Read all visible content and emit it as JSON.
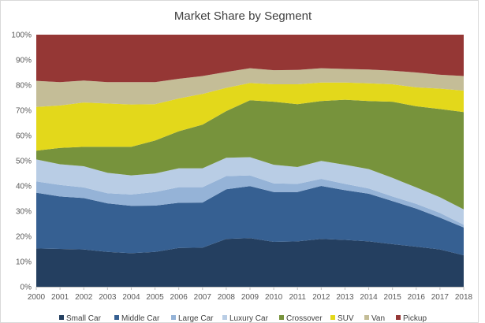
{
  "chart_data": {
    "type": "area",
    "stacked": "percent",
    "title": "Market Share by Segment",
    "xlabel": "",
    "ylabel": "",
    "ylim": [
      0,
      100
    ],
    "y_ticks": [
      "0%",
      "10%",
      "20%",
      "30%",
      "40%",
      "50%",
      "60%",
      "70%",
      "80%",
      "90%",
      "100%"
    ],
    "grid": false,
    "legend": "bottom",
    "categories": [
      "2000",
      "2001",
      "2002",
      "2003",
      "2004",
      "2005",
      "2006",
      "2007",
      "2008",
      "2009",
      "2010",
      "2011",
      "2012",
      "2013",
      "2014",
      "2015",
      "2016",
      "2017",
      "2018"
    ],
    "series": [
      {
        "name": "Small Car",
        "color": "#243F60",
        "values": [
          15.2,
          15.0,
          14.8,
          13.8,
          13.3,
          13.8,
          15.4,
          15.5,
          19.0,
          19.3,
          17.8,
          18.0,
          19.0,
          18.6,
          18.0,
          16.9,
          15.9,
          14.8,
          12.5
        ]
      },
      {
        "name": "Middle Car",
        "color": "#366092",
        "values": [
          22.1,
          20.8,
          20.4,
          19.3,
          18.8,
          18.4,
          17.9,
          17.9,
          19.7,
          20.6,
          19.8,
          19.6,
          21.0,
          19.7,
          18.9,
          17.1,
          15.1,
          12.6,
          11.0
        ]
      },
      {
        "name": "Large Car",
        "color": "#95B3D7",
        "values": [
          4.5,
          4.6,
          4.2,
          4.0,
          4.5,
          5.4,
          6.2,
          6.1,
          5.2,
          4.3,
          3.4,
          3.2,
          2.8,
          2.5,
          2.1,
          1.8,
          1.9,
          1.9,
          1.1
        ]
      },
      {
        "name": "Luxury Car",
        "color": "#B9CDE5",
        "values": [
          8.7,
          8.2,
          8.4,
          8.1,
          7.6,
          7.3,
          7.5,
          7.5,
          7.3,
          7.2,
          7.4,
          6.7,
          7.1,
          7.6,
          7.7,
          7.4,
          6.5,
          6.2,
          6.1
        ]
      },
      {
        "name": "Crossover",
        "color": "#77933C",
        "values": [
          3.5,
          6.5,
          7.7,
          10.3,
          11.3,
          13.1,
          14.7,
          17.3,
          18.5,
          22.6,
          25.0,
          24.9,
          23.8,
          25.8,
          27.0,
          30.2,
          32.2,
          35.0,
          38.6
        ]
      },
      {
        "name": "SUV",
        "color": "#E3D81B",
        "values": [
          17.3,
          16.8,
          17.6,
          17.2,
          16.8,
          14.4,
          13.0,
          12.2,
          9.2,
          6.8,
          6.9,
          7.9,
          7.3,
          6.8,
          7.0,
          6.9,
          7.5,
          8.1,
          8.5
        ]
      },
      {
        "name": "Van",
        "color": "#C4BD97",
        "values": [
          10.4,
          9.3,
          8.7,
          8.5,
          8.9,
          8.8,
          7.8,
          7.1,
          6.3,
          5.9,
          5.6,
          5.7,
          5.7,
          5.4,
          5.5,
          5.4,
          5.9,
          5.5,
          5.8
        ]
      },
      {
        "name": "Pickup",
        "color": "#953735",
        "values": [
          18.3,
          18.8,
          18.2,
          18.8,
          18.8,
          18.8,
          17.5,
          16.4,
          14.8,
          13.3,
          14.1,
          14.0,
          13.3,
          13.6,
          13.8,
          14.3,
          15.0,
          15.9,
          16.4
        ]
      }
    ]
  }
}
